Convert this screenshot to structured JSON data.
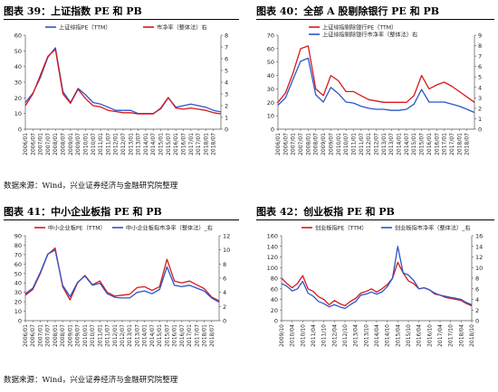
{
  "source_label": "数据来源：Wind，兴业证券经济与金融研究院整理",
  "colors": {
    "red": "#d7191c",
    "blue": "#2b55c9"
  },
  "chart_data": [
    {
      "type": "line",
      "caption": "图表 39：上证指数 PE 和 PB",
      "x": [
        "2006/01",
        "2006/07",
        "2007/01",
        "2007/07",
        "2008/01",
        "2008/07",
        "2009/01",
        "2009/07",
        "2010/01",
        "2010/07",
        "2011/01",
        "2011/07",
        "2012/01",
        "2012/07",
        "2013/01",
        "2013/07",
        "2014/01",
        "2014/07",
        "2015/01",
        "2015/07",
        "2016/01",
        "2016/07",
        "2017/01",
        "2017/07",
        "2018/01",
        "2018/07",
        "2018/11"
      ],
      "xticks": [
        "2006/01",
        "2006/07",
        "2007/01",
        "2007/07",
        "2008/01",
        "2008/07",
        "2009/01",
        "2009/07",
        "2010/01",
        "2010/07",
        "2011/01",
        "2011/07",
        "2012/01",
        "2012/07",
        "2013/01",
        "2013/07",
        "2014/01",
        "2014/07",
        "2015/01",
        "2015/07",
        "2016/01",
        "2016/07",
        "2017/01",
        "2017/07",
        "2018/01",
        "2018/07"
      ],
      "ylim": [
        0,
        60
      ],
      "yticks": [
        0,
        10,
        20,
        30,
        40,
        50,
        60
      ],
      "y2lim": [
        0,
        8
      ],
      "y2ticks": [
        0,
        1,
        2,
        3,
        4,
        5,
        6,
        7,
        8
      ],
      "legend_position": "top",
      "series": [
        {
          "name": "上证综指PE（TTM）",
          "color": "blue",
          "axis": "left",
          "values": [
            17,
            23,
            33,
            46,
            52,
            24,
            17,
            26,
            22,
            17,
            16,
            14,
            12,
            12,
            12,
            10,
            10,
            10,
            13,
            20,
            14,
            15,
            16,
            15,
            14,
            12,
            11
          ]
        },
        {
          "name": "市净率（整体法）右",
          "color": "red",
          "axis": "right",
          "values": [
            2.0,
            3.0,
            4.6,
            6.2,
            6.8,
            3.0,
            2.2,
            3.4,
            2.6,
            2.0,
            1.9,
            1.6,
            1.5,
            1.4,
            1.4,
            1.3,
            1.3,
            1.3,
            1.8,
            2.7,
            1.8,
            1.7,
            1.8,
            1.7,
            1.6,
            1.4,
            1.3
          ]
        }
      ]
    },
    {
      "type": "line",
      "caption": "图表 40：全部 A 股剔除银行 PE 和 PB",
      "x": [
        "2006/01",
        "2006/07",
        "2007/01",
        "2007/07",
        "2008/01",
        "2008/07",
        "2009/01",
        "2009/07",
        "2010/01",
        "2010/07",
        "2011/01",
        "2011/07",
        "2012/01",
        "2012/07",
        "2013/01",
        "2013/07",
        "2014/01",
        "2014/07",
        "2015/01",
        "2015/07",
        "2016/01",
        "2016/07",
        "2017/01",
        "2017/07",
        "2018/01",
        "2018/07",
        "2018/11"
      ],
      "xticks": [
        "2006/01",
        "2006/07",
        "2007/01",
        "2007/07",
        "2008/01",
        "2008/07",
        "2009/01",
        "2009/07",
        "2010/01",
        "2010/07",
        "2011/01",
        "2011/07",
        "2012/01",
        "2012/07",
        "2013/01",
        "2013/07",
        "2014/01",
        "2014/07",
        "2015/01",
        "2015/07",
        "2016/01",
        "2016/07",
        "2017/01",
        "2017/07",
        "2018/01",
        "2018/07"
      ],
      "ylim": [
        0,
        70
      ],
      "yticks": [
        0,
        10,
        20,
        30,
        40,
        50,
        60,
        70
      ],
      "y2lim": [
        0,
        9
      ],
      "y2ticks": [
        0,
        1,
        2,
        3,
        4,
        5,
        6,
        7,
        8,
        9
      ],
      "legend_position": "top",
      "series": [
        {
          "name": "上证综指剔除银行PE（TTM）",
          "color": "red",
          "axis": "left",
          "values": [
            20,
            27,
            42,
            60,
            62,
            30,
            25,
            40,
            36,
            28,
            28,
            25,
            22,
            21,
            20,
            20,
            20,
            20,
            25,
            40,
            30,
            33,
            35,
            32,
            28,
            24,
            20
          ]
        },
        {
          "name": "上证综指剔除银行市净率（整体法）右",
          "color": "blue",
          "axis": "right",
          "values": [
            2.3,
            3.0,
            4.8,
            6.5,
            6.8,
            3.3,
            2.6,
            4.0,
            3.4,
            2.6,
            2.5,
            2.2,
            2.0,
            1.9,
            1.9,
            1.8,
            1.8,
            1.9,
            2.4,
            3.8,
            2.6,
            2.6,
            2.6,
            2.4,
            2.2,
            1.9,
            1.6
          ]
        }
      ]
    },
    {
      "type": "line",
      "caption": "图表 41：中小企业板指 PE 和 PB",
      "x": [
        "2006/01",
        "2006/07",
        "2007/01",
        "2007/07",
        "2008/01",
        "2008/07",
        "2009/01",
        "2009/07",
        "2010/01",
        "2010/07",
        "2011/01",
        "2011/07",
        "2012/01",
        "2012/07",
        "2013/01",
        "2013/07",
        "2014/01",
        "2014/07",
        "2015/01",
        "2015/07",
        "2016/01",
        "2016/07",
        "2017/01",
        "2017/07",
        "2018/01",
        "2018/07",
        "2018/11"
      ],
      "xticks": [
        "2006/01",
        "2006/07",
        "2007/01",
        "2007/07",
        "2008/01",
        "2008/07",
        "2009/01",
        "2009/07",
        "2010/01",
        "2010/07",
        "2011/01",
        "2011/07",
        "2012/01",
        "2012/07",
        "2013/01",
        "2013/07",
        "2014/01",
        "2014/07",
        "2015/01",
        "2015/07",
        "2016/01",
        "2016/07",
        "2017/01",
        "2017/07",
        "2018/01",
        "2018/07"
      ],
      "ylim": [
        0,
        90
      ],
      "yticks": [
        0,
        10,
        20,
        30,
        40,
        50,
        60,
        70,
        80,
        90
      ],
      "y2lim": [
        0,
        12
      ],
      "y2ticks": [
        0,
        2,
        4,
        6,
        8,
        10,
        12
      ],
      "legend_position": "top",
      "series": [
        {
          "name": "中小企业板PE（TTM）",
          "color": "red",
          "axis": "left",
          "values": [
            27,
            33,
            50,
            70,
            77,
            36,
            22,
            40,
            48,
            38,
            42,
            30,
            26,
            27,
            28,
            35,
            36,
            32,
            36,
            65,
            42,
            40,
            42,
            38,
            34,
            25,
            21
          ]
        },
        {
          "name": "中小企业板指市净率（整体法）_右",
          "color": "blue",
          "axis": "right",
          "values": [
            3.8,
            4.6,
            6.8,
            9.4,
            10.0,
            5.0,
            3.4,
            5.4,
            6.3,
            5.0,
            5.3,
            3.8,
            3.3,
            3.2,
            3.2,
            4.0,
            4.2,
            3.8,
            4.4,
            7.6,
            5.0,
            4.8,
            5.0,
            4.6,
            4.2,
            3.2,
            2.6
          ]
        }
      ]
    },
    {
      "type": "line",
      "caption": "图表 42：创业板指 PE 和 PB",
      "x": [
        "2009/10",
        "2010/01",
        "2010/04",
        "2010/07",
        "2010/10",
        "2011/01",
        "2011/04",
        "2011/07",
        "2011/10",
        "2012/01",
        "2012/04",
        "2012/07",
        "2012/10",
        "2013/01",
        "2013/04",
        "2013/07",
        "2013/10",
        "2014/01",
        "2014/04",
        "2014/07",
        "2014/10",
        "2015/01",
        "2015/04",
        "2015/07",
        "2015/10",
        "2016/01",
        "2016/04",
        "2016/07",
        "2016/10",
        "2017/01",
        "2017/04",
        "2017/07",
        "2017/10",
        "2018/01",
        "2018/04",
        "2018/07",
        "2018/10"
      ],
      "xticks": [
        "2009/10",
        "2010/04",
        "2010/10",
        "2011/04",
        "2011/10",
        "2012/04",
        "2012/10",
        "2013/04",
        "2013/10",
        "2014/04",
        "2014/10",
        "2015/04",
        "2015/10",
        "2016/04",
        "2016/10",
        "2017/04",
        "2017/10",
        "2018/04",
        "2018/10"
      ],
      "ylim": [
        0,
        160
      ],
      "yticks": [
        0,
        20,
        40,
        60,
        80,
        100,
        120,
        140,
        160
      ],
      "y2lim": [
        0,
        16
      ],
      "y2ticks": [
        0,
        2,
        4,
        6,
        8,
        10,
        12,
        14,
        16
      ],
      "legend_position": "top",
      "series": [
        {
          "name": "创业板指PE（TTM）",
          "color": "red",
          "axis": "left",
          "values": [
            80,
            70,
            62,
            70,
            85,
            60,
            55,
            45,
            40,
            30,
            38,
            32,
            28,
            36,
            42,
            52,
            55,
            60,
            54,
            60,
            68,
            80,
            110,
            90,
            75,
            70,
            60,
            62,
            58,
            50,
            48,
            44,
            42,
            40,
            38,
            32,
            28
          ]
        },
        {
          "name": "创业板指市净率（整体法）_右",
          "color": "blue",
          "axis": "right",
          "values": [
            7.0,
            6.5,
            5.6,
            6.0,
            7.4,
            5.2,
            4.6,
            3.6,
            3.2,
            2.6,
            3.0,
            2.6,
            2.3,
            3.0,
            3.6,
            4.8,
            5.0,
            5.4,
            5.0,
            5.4,
            6.4,
            8.0,
            14.0,
            9.0,
            8.6,
            7.6,
            6.0,
            6.2,
            5.8,
            5.2,
            4.8,
            4.6,
            4.4,
            4.2,
            4.0,
            3.4,
            3.0
          ]
        }
      ]
    }
  ]
}
